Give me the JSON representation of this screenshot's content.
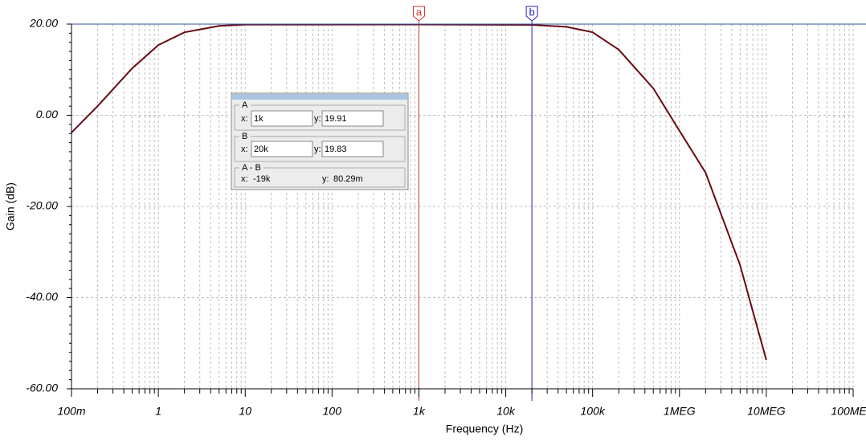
{
  "chart_data": {
    "type": "line",
    "xlabel": "Frequency (Hz)",
    "ylabel": "Gain (dB)",
    "x": [
      0.1,
      0.2,
      0.5,
      1,
      2,
      5,
      10,
      1000,
      20000,
      50000,
      100000,
      200000,
      500000,
      1000000,
      2000000,
      5000000,
      10000000
    ],
    "values": [
      -3.8,
      2.0,
      10.3,
      15.4,
      18.2,
      19.6,
      19.9,
      19.91,
      19.83,
      19.4,
      18.2,
      14.4,
      5.9,
      -3.4,
      -12.6,
      -32.9,
      -53.7
    ],
    "color": "#6b0a14",
    "xscale": "log",
    "xlim": [
      0.1,
      100000000
    ],
    "xticks": [
      {
        "value": 0.1,
        "label": "100m"
      },
      1,
      10,
      100,
      {
        "value": 1000,
        "label": "1k"
      },
      {
        "value": 10000,
        "label": "10k"
      },
      {
        "value": 100000,
        "label": "100k"
      },
      {
        "value": 1000000,
        "label": "1MEG"
      },
      {
        "value": 10000000,
        "label": "10MEG"
      },
      {
        "value": 100000000,
        "label": "100MEG"
      }
    ],
    "ylim": [
      -60,
      20
    ],
    "yticks": [
      {
        "value": -60,
        "label": "-60.00"
      },
      {
        "value": -40,
        "label": "-40.00"
      },
      {
        "value": -20,
        "label": "-20.00"
      },
      {
        "value": 0,
        "label": "0.00"
      },
      {
        "value": 20,
        "label": "20.00"
      }
    ],
    "grid": true,
    "cursors": [
      {
        "name": "a",
        "x": 1000,
        "color": "#e03030"
      },
      {
        "name": "b",
        "x": 20000,
        "color": "#2020c0"
      }
    ],
    "readout": {
      "A": {
        "title": "A",
        "x_label": "x:",
        "x": "1k",
        "y_label": "y:",
        "y": "19.91"
      },
      "B": {
        "title": "B",
        "x_label": "x:",
        "x": "20k",
        "y_label": "y:",
        "y": "19.83"
      },
      "diff": {
        "title": "A - B",
        "x_label": "x:",
        "x": "-19k",
        "y_label": "y:",
        "y": "80.29m"
      }
    }
  }
}
